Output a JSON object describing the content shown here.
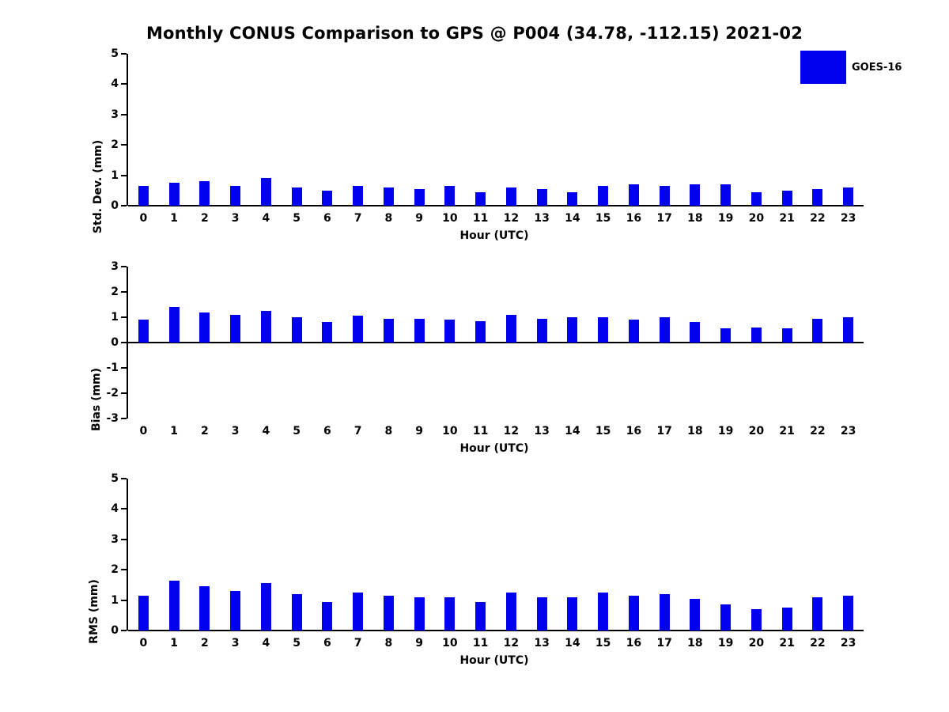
{
  "title": "Monthly CONUS Comparison to GPS @ P004 (34.78, -112.15) 2021-02",
  "legend": {
    "label": "GOES-16",
    "color": "#0000EE"
  },
  "chart_data": [
    {
      "type": "bar",
      "ylabel": "Std. Dev. (mm)",
      "xlabel": "Hour (UTC)",
      "ylim": [
        0,
        5
      ],
      "yticks": [
        0,
        1,
        2,
        3,
        4,
        5
      ],
      "grid": false,
      "legend_position": "upper-right-figure",
      "categories": [
        "0",
        "1",
        "2",
        "3",
        "4",
        "5",
        "6",
        "7",
        "8",
        "9",
        "10",
        "11",
        "12",
        "13",
        "14",
        "15",
        "16",
        "17",
        "18",
        "19",
        "20",
        "21",
        "22",
        "23"
      ],
      "series": [
        {
          "name": "GOES-16",
          "color": "#0000EE",
          "values": [
            0.65,
            0.75,
            0.8,
            0.65,
            0.9,
            0.6,
            0.5,
            0.65,
            0.6,
            0.55,
            0.65,
            0.45,
            0.6,
            0.55,
            0.45,
            0.65,
            0.7,
            0.65,
            0.7,
            0.7,
            0.45,
            0.5,
            0.55,
            0.6
          ]
        }
      ]
    },
    {
      "type": "bar",
      "ylabel": "Bias (mm)",
      "xlabel": "Hour (UTC)",
      "ylim": [
        -3,
        3
      ],
      "yticks": [
        -3,
        -2,
        -1,
        0,
        1,
        2,
        3
      ],
      "grid": false,
      "categories": [
        "0",
        "1",
        "2",
        "3",
        "4",
        "5",
        "6",
        "7",
        "8",
        "9",
        "10",
        "11",
        "12",
        "13",
        "14",
        "15",
        "16",
        "17",
        "18",
        "19",
        "20",
        "21",
        "22",
        "23"
      ],
      "series": [
        {
          "name": "GOES-16",
          "color": "#0000EE",
          "values": [
            0.9,
            1.4,
            1.2,
            1.1,
            1.25,
            1.0,
            0.8,
            1.05,
            0.95,
            0.95,
            0.9,
            0.85,
            1.1,
            0.95,
            1.0,
            1.0,
            0.9,
            1.0,
            0.8,
            0.55,
            0.6,
            0.55,
            0.95,
            1.0
          ]
        }
      ]
    },
    {
      "type": "bar",
      "ylabel": "RMS (mm)",
      "xlabel": "Hour (UTC)",
      "ylim": [
        0,
        5
      ],
      "yticks": [
        0,
        1,
        2,
        3,
        4,
        5
      ],
      "grid": false,
      "categories": [
        "0",
        "1",
        "2",
        "3",
        "4",
        "5",
        "6",
        "7",
        "8",
        "9",
        "10",
        "11",
        "12",
        "13",
        "14",
        "15",
        "16",
        "17",
        "18",
        "19",
        "20",
        "21",
        "22",
        "23"
      ],
      "series": [
        {
          "name": "GOES-16",
          "color": "#0000EE",
          "values": [
            1.15,
            1.65,
            1.45,
            1.3,
            1.55,
            1.2,
            0.95,
            1.25,
            1.15,
            1.1,
            1.1,
            0.95,
            1.25,
            1.1,
            1.1,
            1.25,
            1.15,
            1.2,
            1.05,
            0.85,
            0.7,
            0.75,
            1.1,
            1.15
          ]
        }
      ]
    }
  ]
}
